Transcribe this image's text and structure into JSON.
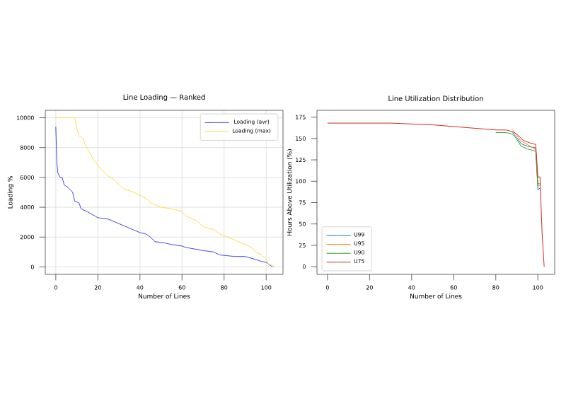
{
  "chart_data": [
    {
      "type": "line",
      "title": "Line Loading — Ranked",
      "xlabel": "Number of Lines",
      "ylabel": "Loading %",
      "xlim": [
        -5,
        108
      ],
      "ylim": [
        -500,
        10500
      ],
      "xticks": [
        0,
        20,
        40,
        60,
        80,
        100
      ],
      "yticks": [
        0,
        2000,
        4000,
        6000,
        8000,
        10000
      ],
      "grid": true,
      "legend": "top right",
      "series": [
        {
          "name": "Loading (avr)",
          "color": "#4444ee",
          "x": [
            0,
            0.5,
            1,
            2,
            3,
            4,
            6,
            8,
            9,
            11,
            12,
            15,
            20,
            25,
            30,
            35,
            40,
            43,
            45,
            47,
            52,
            55,
            60,
            62,
            70,
            75,
            78,
            85,
            90,
            95,
            97,
            100,
            102,
            103
          ],
          "values": [
            9400,
            7000,
            6300,
            6000,
            6000,
            5500,
            5300,
            5000,
            4400,
            4300,
            3900,
            3700,
            3300,
            3200,
            2900,
            2600,
            2300,
            2200,
            2000,
            1700,
            1600,
            1500,
            1400,
            1300,
            1100,
            1000,
            800,
            700,
            700,
            500,
            400,
            300,
            100,
            0
          ]
        },
        {
          "name": "Loading (max)",
          "color": "#ffdd44",
          "x": [
            0,
            9,
            10,
            11,
            13,
            14,
            16,
            18,
            20,
            22,
            25,
            28,
            30,
            33,
            37,
            40,
            43,
            45,
            50,
            55,
            60,
            62,
            67,
            70,
            75,
            78,
            82,
            85,
            90,
            93,
            95,
            98,
            100,
            101,
            103,
            104
          ],
          "values": [
            10000,
            10000,
            9300,
            8800,
            8600,
            8200,
            7700,
            7200,
            6800,
            6500,
            6100,
            5800,
            5500,
            5200,
            5000,
            4800,
            4600,
            4300,
            4000,
            3900,
            3700,
            3400,
            3100,
            2700,
            2500,
            2200,
            2000,
            1800,
            1500,
            1300,
            1000,
            800,
            500,
            200,
            100,
            0
          ]
        }
      ]
    },
    {
      "type": "line",
      "title": "Line Utilization Distribution",
      "xlabel": "Number of Lines",
      "ylabel": "Hours Above Utilization (%)",
      "xlim": [
        -5,
        108
      ],
      "ylim": [
        -9,
        183
      ],
      "xticks": [
        0,
        20,
        40,
        60,
        80,
        100
      ],
      "yticks": [
        {
          "value": 0,
          "label": "0"
        },
        {
          "value": 25,
          "label": "25"
        },
        {
          "value": 50,
          "label": "50"
        },
        {
          "value": 75,
          "label": "75"
        },
        {
          "value": 100,
          "label": "100"
        },
        {
          "value": 125,
          "label": "125"
        },
        {
          "value": 150,
          "label": "150"
        },
        {
          "value": 175,
          "label": "175"
        }
      ],
      "legend": "bottom left",
      "series": [
        {
          "name": "U99",
          "color": "#1f77b4",
          "x": [
            88,
            90,
            92,
            95,
            99,
            100,
            101
          ],
          "values": [
            157,
            151,
            144,
            141,
            139,
            90,
            92
          ]
        },
        {
          "name": "U95",
          "color": "#ff7f0e",
          "x": [
            88,
            90,
            92,
            95,
            99,
            100,
            101
          ],
          "values": [
            160,
            154,
            147,
            143,
            137,
            95,
            95
          ]
        },
        {
          "name": "U90",
          "color": "#2ca02c",
          "x": [
            80,
            85,
            88,
            90,
            92,
            95,
            99,
            100,
            101
          ],
          "values": [
            157,
            157,
            155,
            149,
            141,
            138,
            135,
            97,
            97
          ]
        },
        {
          "name": "U75",
          "color": "#d62728",
          "x": [
            0,
            30,
            40,
            50,
            60,
            70,
            80,
            85,
            88,
            90,
            93,
            96,
            99,
            100,
            101,
            102,
            103
          ],
          "values": [
            168,
            168,
            167,
            166,
            164,
            162,
            160,
            160,
            158,
            155,
            148,
            145,
            143,
            105,
            105,
            40,
            0
          ]
        }
      ]
    }
  ]
}
